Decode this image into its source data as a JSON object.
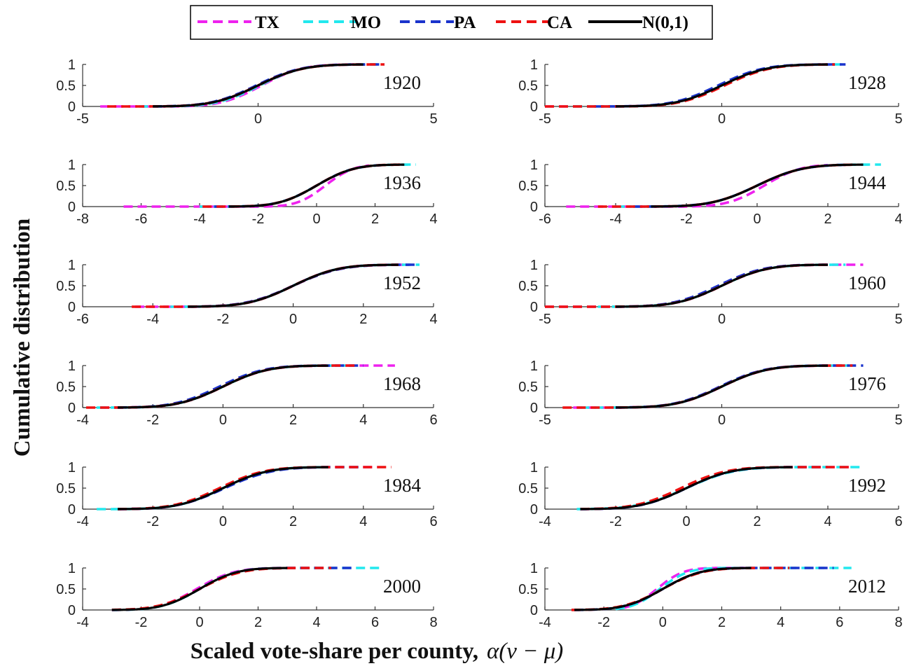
{
  "figure": {
    "ylabel": "Cumulative distribution",
    "xlabel_text": "Scaled vote-share per county,",
    "xlabel_math": "α(v − μ)"
  },
  "legend": [
    {
      "name": "TX",
      "color": "#ee22ee",
      "dash": "dashed"
    },
    {
      "name": "MO",
      "color": "#22e8ee",
      "dash": "dashed"
    },
    {
      "name": "PA",
      "color": "#1a33cc",
      "dash": "dashed"
    },
    {
      "name": "CA",
      "color": "#ee1111",
      "dash": "dashed"
    },
    {
      "name": "N(0,1)",
      "color": "#000000",
      "dash": "solid"
    }
  ],
  "chart_data": [
    {
      "type": "line",
      "year_label": "1920",
      "xlim": [
        -5,
        5
      ],
      "xticks": [
        -5,
        0,
        5
      ],
      "yticks": [
        0,
        0.5,
        1
      ],
      "ylim": [
        0,
        1
      ],
      "series": [
        {
          "name": "TX",
          "range": [
            -4.5,
            2.8
          ],
          "shift": 0.1,
          "scale": 0.9
        },
        {
          "name": "MO",
          "range": [
            -3.4,
            3.4
          ],
          "shift": 0.05,
          "scale": 0.95
        },
        {
          "name": "PA",
          "range": [
            -3.0,
            3.6
          ],
          "shift": -0.05,
          "scale": 1.0
        },
        {
          "name": "CA",
          "range": [
            -4.3,
            3.6
          ],
          "shift": 0.0,
          "scale": 1.0
        },
        {
          "name": "N(0,1)",
          "range": [
            -3.0,
            3.0
          ]
        }
      ]
    },
    {
      "type": "line",
      "year_label": "1928",
      "xlim": [
        -5,
        5
      ],
      "xticks": [
        -5,
        0,
        5
      ],
      "yticks": [
        0,
        0.5,
        1
      ],
      "ylim": [
        0,
        1
      ],
      "series": [
        {
          "name": "TX",
          "range": [
            -5,
            3.0
          ],
          "shift": 0.0,
          "scale": 1.0
        },
        {
          "name": "MO",
          "range": [
            -4.2,
            3.5
          ],
          "shift": 0.0,
          "scale": 1.0
        },
        {
          "name": "PA",
          "range": [
            -3.6,
            3.5
          ],
          "shift": -0.1,
          "scale": 1.0
        },
        {
          "name": "CA",
          "range": [
            -5,
            3.2
          ],
          "shift": 0.08,
          "scale": 1.0
        },
        {
          "name": "N(0,1)",
          "range": [
            -3.0,
            3.0
          ]
        }
      ]
    },
    {
      "type": "line",
      "year_label": "1936",
      "xlim": [
        -8,
        4
      ],
      "xticks": [
        -8,
        -6,
        -4,
        -2,
        0,
        2,
        4
      ],
      "yticks": [
        0,
        0.5,
        1
      ],
      "ylim": [
        0,
        1
      ],
      "series": [
        {
          "name": "TX",
          "range": [
            -6.6,
            1.8
          ],
          "shift": 0.3,
          "scale": 0.75
        },
        {
          "name": "MO",
          "range": [
            -4.0,
            3.4
          ],
          "shift": 0.0,
          "scale": 1.0
        },
        {
          "name": "PA",
          "range": [
            -3.5,
            2.2
          ],
          "shift": 0.0,
          "scale": 1.0
        },
        {
          "name": "CA",
          "range": [
            -3.9,
            3.0
          ],
          "shift": 0.0,
          "scale": 1.0
        },
        {
          "name": "N(0,1)",
          "range": [
            -3.0,
            3.0
          ]
        }
      ]
    },
    {
      "type": "line",
      "year_label": "1944",
      "xlim": [
        -6,
        4
      ],
      "xticks": [
        -6,
        -4,
        -2,
        0,
        2,
        4
      ],
      "yticks": [
        0,
        0.5,
        1
      ],
      "ylim": [
        0,
        1
      ],
      "series": [
        {
          "name": "TX",
          "range": [
            -5.4,
            2.0
          ],
          "shift": 0.2,
          "scale": 0.8
        },
        {
          "name": "MO",
          "range": [
            -4.0,
            3.5
          ],
          "shift": 0.0,
          "scale": 1.0
        },
        {
          "name": "PA",
          "range": [
            -3.5,
            2.5
          ],
          "shift": 0.0,
          "scale": 1.0
        },
        {
          "name": "CA",
          "range": [
            -4.5,
            2.8
          ],
          "shift": 0.0,
          "scale": 1.0
        },
        {
          "name": "N(0,1)",
          "range": [
            -3.0,
            3.0
          ]
        }
      ]
    },
    {
      "type": "line",
      "year_label": "1952",
      "xlim": [
        -6,
        4
      ],
      "xticks": [
        -6,
        -4,
        -2,
        0,
        2,
        4
      ],
      "yticks": [
        0,
        0.5,
        1
      ],
      "ylim": [
        0,
        1
      ],
      "series": [
        {
          "name": "TX",
          "range": [
            -4.5,
            3.3
          ],
          "shift": 0.0,
          "scale": 1.0
        },
        {
          "name": "MO",
          "range": [
            -3.5,
            3.6
          ],
          "shift": 0.0,
          "scale": 1.0
        },
        {
          "name": "PA",
          "range": [
            -3.0,
            3.5
          ],
          "shift": 0.0,
          "scale": 1.05
        },
        {
          "name": "CA",
          "range": [
            -4.6,
            3.0
          ],
          "shift": 0.0,
          "scale": 1.0
        },
        {
          "name": "N(0,1)",
          "range": [
            -3.0,
            3.0
          ]
        }
      ]
    },
    {
      "type": "line",
      "year_label": "1960",
      "xlim": [
        -5,
        5
      ],
      "xticks": [
        -5,
        0,
        5
      ],
      "yticks": [
        0,
        0.5,
        1
      ],
      "ylim": [
        0,
        1
      ],
      "series": [
        {
          "name": "TX",
          "range": [
            -5,
            4.0
          ],
          "shift": 0.0,
          "scale": 1.0
        },
        {
          "name": "MO",
          "range": [
            -3.5,
            3.5
          ],
          "shift": 0.0,
          "scale": 1.0
        },
        {
          "name": "PA",
          "range": [
            -3.0,
            3.0
          ],
          "shift": -0.1,
          "scale": 1.0
        },
        {
          "name": "CA",
          "range": [
            -5,
            3.0
          ],
          "shift": 0.0,
          "scale": 1.0
        },
        {
          "name": "N(0,1)",
          "range": [
            -3.0,
            3.0
          ]
        }
      ]
    },
    {
      "type": "line",
      "year_label": "1968",
      "xlim": [
        -4,
        6
      ],
      "xticks": [
        -4,
        -2,
        0,
        2,
        4,
        6
      ],
      "yticks": [
        0,
        0.5,
        1
      ],
      "ylim": [
        0,
        1
      ],
      "series": [
        {
          "name": "TX",
          "range": [
            -3.5,
            4.9
          ],
          "shift": 0.0,
          "scale": 1.0
        },
        {
          "name": "MO",
          "range": [
            -3.6,
            3.5
          ],
          "shift": 0.0,
          "scale": 1.0
        },
        {
          "name": "PA",
          "range": [
            -3.0,
            4.0
          ],
          "shift": -0.1,
          "scale": 1.0
        },
        {
          "name": "CA",
          "range": [
            -3.9,
            3.8
          ],
          "shift": 0.0,
          "scale": 1.0
        },
        {
          "name": "N(0,1)",
          "range": [
            -3.0,
            3.0
          ]
        }
      ]
    },
    {
      "type": "line",
      "year_label": "1976",
      "xlim": [
        -5,
        5
      ],
      "xticks": [
        -5,
        0,
        5
      ],
      "yticks": [
        0,
        0.5,
        1
      ],
      "ylim": [
        0,
        1
      ],
      "series": [
        {
          "name": "TX",
          "range": [
            -4.2,
            3.5
          ],
          "shift": 0.0,
          "scale": 1.0
        },
        {
          "name": "MO",
          "range": [
            -4.0,
            3.6
          ],
          "shift": 0.0,
          "scale": 1.0
        },
        {
          "name": "PA",
          "range": [
            -3.0,
            4.0
          ],
          "shift": -0.05,
          "scale": 1.0
        },
        {
          "name": "CA",
          "range": [
            -4.5,
            3.7
          ],
          "shift": 0.0,
          "scale": 1.0
        },
        {
          "name": "N(0,1)",
          "range": [
            -3.0,
            3.0
          ]
        }
      ]
    },
    {
      "type": "line",
      "year_label": "1984",
      "xlim": [
        -4,
        6
      ],
      "xticks": [
        -4,
        -2,
        0,
        2,
        4,
        6
      ],
      "yticks": [
        0,
        0.5,
        1
      ],
      "ylim": [
        0,
        1
      ],
      "series": [
        {
          "name": "TX",
          "range": [
            -3.0,
            4.4
          ],
          "shift": 0.0,
          "scale": 1.0
        },
        {
          "name": "MO",
          "range": [
            -3.6,
            3.0
          ],
          "shift": 0.0,
          "scale": 1.0
        },
        {
          "name": "PA",
          "range": [
            -3.0,
            4.0
          ],
          "shift": 0.05,
          "scale": 1.05
        },
        {
          "name": "CA",
          "range": [
            -3.0,
            4.8
          ],
          "shift": -0.1,
          "scale": 1.0
        },
        {
          "name": "N(0,1)",
          "range": [
            -3.0,
            3.0
          ]
        }
      ]
    },
    {
      "type": "line",
      "year_label": "1992",
      "xlim": [
        -4,
        6
      ],
      "xticks": [
        -4,
        -2,
        0,
        2,
        4,
        6
      ],
      "yticks": [
        0,
        0.5,
        1
      ],
      "ylim": [
        0,
        1
      ],
      "series": [
        {
          "name": "TX",
          "range": [
            -3.0,
            4.6
          ],
          "shift": -0.1,
          "scale": 1.0
        },
        {
          "name": "MO",
          "range": [
            -3.1,
            4.9
          ],
          "shift": 0.0,
          "scale": 1.05
        },
        {
          "name": "PA",
          "range": [
            -3.0,
            4.0
          ],
          "shift": 0.0,
          "scale": 1.0
        },
        {
          "name": "CA",
          "range": [
            -3.0,
            4.6
          ],
          "shift": -0.15,
          "scale": 1.0
        },
        {
          "name": "N(0,1)",
          "range": [
            -3.0,
            3.0
          ]
        }
      ]
    },
    {
      "type": "line",
      "year_label": "2000",
      "xlim": [
        -4,
        8
      ],
      "xticks": [
        -4,
        -2,
        0,
        2,
        4,
        6,
        8
      ],
      "yticks": [
        0,
        0.5,
        1
      ],
      "ylim": [
        0,
        1
      ],
      "series": [
        {
          "name": "TX",
          "range": [
            -3.0,
            4.0
          ],
          "shift": -0.1,
          "scale": 1.0
        },
        {
          "name": "MO",
          "range": [
            -3.0,
            6.3
          ],
          "shift": 0.0,
          "scale": 1.0
        },
        {
          "name": "PA",
          "range": [
            -3.0,
            5.3
          ],
          "shift": 0.0,
          "scale": 1.05
        },
        {
          "name": "CA",
          "range": [
            -3.0,
            4.5
          ],
          "shift": 0.0,
          "scale": 1.1
        },
        {
          "name": "N(0,1)",
          "range": [
            -3.0,
            3.0
          ]
        }
      ]
    },
    {
      "type": "line",
      "year_label": "2012",
      "xlim": [
        -4,
        8
      ],
      "xticks": [
        -4,
        -2,
        0,
        2,
        4,
        6,
        8
      ],
      "yticks": [
        0,
        0.5,
        1
      ],
      "ylim": [
        0,
        1
      ],
      "series": [
        {
          "name": "TX",
          "range": [
            -1.3,
            3.0
          ],
          "shift": -0.2,
          "scale": 0.7
        },
        {
          "name": "MO",
          "range": [
            -1.6,
            6.4
          ],
          "shift": -0.1,
          "scale": 0.75
        },
        {
          "name": "PA",
          "range": [
            -3.0,
            5.8
          ],
          "shift": 0.0,
          "scale": 1.0
        },
        {
          "name": "CA",
          "range": [
            -3.1,
            4.3
          ],
          "shift": 0.0,
          "scale": 1.05
        },
        {
          "name": "N(0,1)",
          "range": [
            -3.0,
            3.0
          ]
        }
      ]
    }
  ]
}
